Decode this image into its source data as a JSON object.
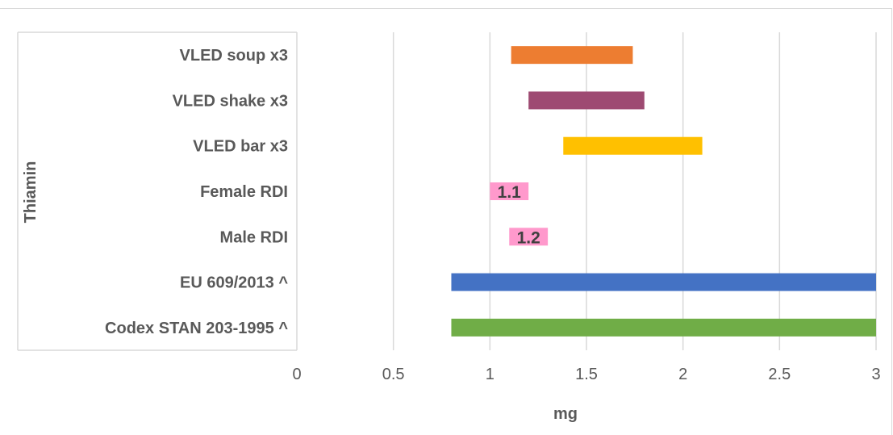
{
  "chart_data": {
    "type": "bar",
    "orientation": "horizontal",
    "bar_style": "floating-range",
    "group_label": "Thiamin",
    "xlabel": "mg",
    "xlim": [
      0,
      3
    ],
    "xticks": [
      "0",
      "0.5",
      "1",
      "1.5",
      "2",
      "2.5",
      "3"
    ],
    "grid": true,
    "legend": "none",
    "categories": [
      {
        "label": "VLED soup x3",
        "start": 1.11,
        "end": 1.74,
        "color": "#ED7D31",
        "data_label": ""
      },
      {
        "label": "VLED shake x3",
        "start": 1.2,
        "end": 1.8,
        "color": "#9E4A72",
        "data_label": ""
      },
      {
        "label": "VLED bar x3",
        "start": 1.38,
        "end": 2.1,
        "color": "#FFC000",
        "data_label": ""
      },
      {
        "label": "Female RDI",
        "start": 1.0,
        "end": 1.2,
        "color": "#FF99CC",
        "data_label": "1.1"
      },
      {
        "label": "Male RDI",
        "start": 1.1,
        "end": 1.3,
        "color": "#FF99CC",
        "data_label": "1.2"
      },
      {
        "label": "EU 609/2013 ^",
        "start": 0.8,
        "end": 3.0,
        "color": "#4472C4",
        "data_label": ""
      },
      {
        "label": "Codex STAN 203-1995 ^",
        "start": 0.8,
        "end": 3.0,
        "color": "#70AD47",
        "data_label": ""
      }
    ],
    "colors": {
      "grid": "#d9d9d9",
      "text": "#595959"
    }
  }
}
